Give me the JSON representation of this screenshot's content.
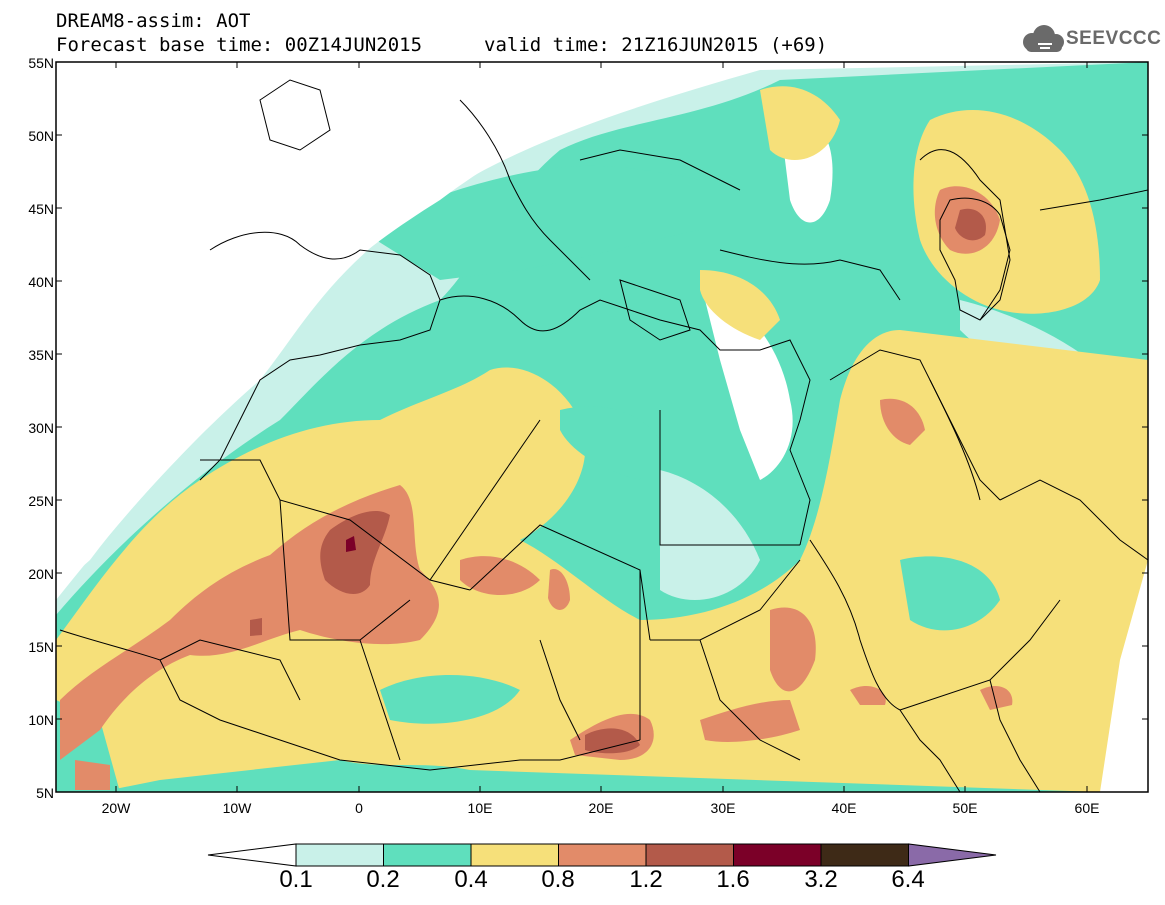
{
  "header": {
    "title": "DREAM8-assim: AOT",
    "base_time": "Forecast base time: 00Z14JUN2015",
    "valid_time": "valid time: 21Z16JUN2015 (+69)"
  },
  "logo": {
    "text": "SEEVCCC",
    "icon": "cloud-icon"
  },
  "map": {
    "variable": "AOT",
    "lat_labels": [
      "55N",
      "50N",
      "45N",
      "40N",
      "35N",
      "30N",
      "25N",
      "20N",
      "15N",
      "10N",
      "5N"
    ],
    "lon_labels": [
      "20W",
      "10W",
      "0",
      "10E",
      "20E",
      "30E",
      "40E",
      "50E",
      "60E"
    ],
    "lat_range": [
      5,
      55
    ],
    "lon_range": [
      -25,
      65
    ]
  },
  "colorbar": {
    "labels": [
      "0.1",
      "0.2",
      "0.4",
      "0.8",
      "1.2",
      "1.6",
      "3.2",
      "6.4"
    ],
    "colors": [
      "#ffffff",
      "#c9f1e9",
      "#5fdfbd",
      "#f6e07a",
      "#e28b69",
      "#b35a4a",
      "#7b0028",
      "#3e2a17",
      "#8a6aa8"
    ]
  }
}
